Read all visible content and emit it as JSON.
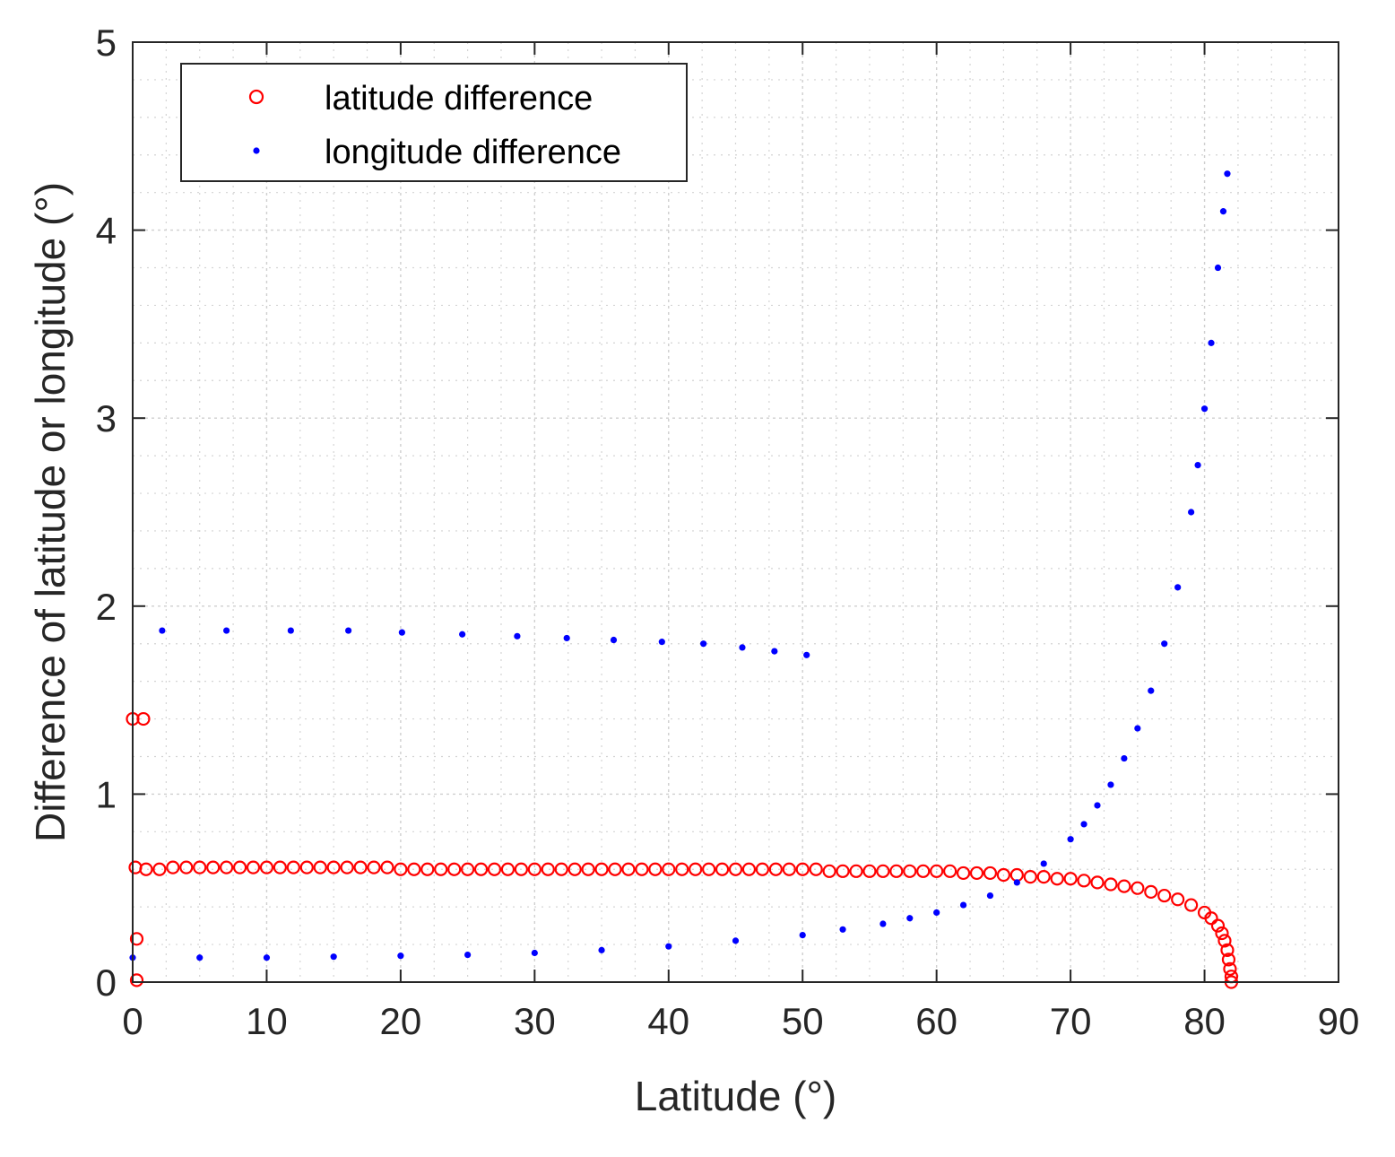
{
  "chart_data": {
    "type": "scatter",
    "title": "",
    "xlabel": "Latitude (°)",
    "ylabel": "Difference of latitude or longitude (°)",
    "xlim": [
      0,
      90
    ],
    "ylim": [
      0,
      5
    ],
    "xticks": [
      0,
      10,
      20,
      30,
      40,
      50,
      60,
      70,
      80,
      90
    ],
    "yticks": [
      0,
      1,
      2,
      3,
      4,
      5
    ],
    "xtick_labels": [
      "0",
      "10",
      "20",
      "30",
      "40",
      "50",
      "60",
      "70",
      "80",
      "90"
    ],
    "ytick_labels": [
      "0",
      "1",
      "2",
      "3",
      "4",
      "5"
    ],
    "minor_grid": true,
    "legend_position": "top-left",
    "series": [
      {
        "name": "latitude difference",
        "marker": "circle-open",
        "color": "#ff0000",
        "points": [
          [
            0.0,
            1.4
          ],
          [
            0.8,
            1.4
          ],
          [
            0.3,
            0.23
          ],
          [
            0.3,
            0.01
          ],
          [
            0.2,
            0.61
          ],
          [
            1,
            0.6
          ],
          [
            2,
            0.6
          ],
          [
            3,
            0.61
          ],
          [
            4,
            0.61
          ],
          [
            5,
            0.61
          ],
          [
            6,
            0.61
          ],
          [
            7,
            0.61
          ],
          [
            8,
            0.61
          ],
          [
            9,
            0.61
          ],
          [
            10,
            0.61
          ],
          [
            11,
            0.61
          ],
          [
            12,
            0.61
          ],
          [
            13,
            0.61
          ],
          [
            14,
            0.61
          ],
          [
            15,
            0.61
          ],
          [
            16,
            0.61
          ],
          [
            17,
            0.61
          ],
          [
            18,
            0.61
          ],
          [
            19,
            0.61
          ],
          [
            20,
            0.6
          ],
          [
            21,
            0.6
          ],
          [
            22,
            0.6
          ],
          [
            23,
            0.6
          ],
          [
            24,
            0.6
          ],
          [
            25,
            0.6
          ],
          [
            26,
            0.6
          ],
          [
            27,
            0.6
          ],
          [
            28,
            0.6
          ],
          [
            29,
            0.6
          ],
          [
            30,
            0.6
          ],
          [
            31,
            0.6
          ],
          [
            32,
            0.6
          ],
          [
            33,
            0.6
          ],
          [
            34,
            0.6
          ],
          [
            35,
            0.6
          ],
          [
            36,
            0.6
          ],
          [
            37,
            0.6
          ],
          [
            38,
            0.6
          ],
          [
            39,
            0.6
          ],
          [
            40,
            0.6
          ],
          [
            41,
            0.6
          ],
          [
            42,
            0.6
          ],
          [
            43,
            0.6
          ],
          [
            44,
            0.6
          ],
          [
            45,
            0.6
          ],
          [
            46,
            0.6
          ],
          [
            47,
            0.6
          ],
          [
            48,
            0.6
          ],
          [
            49,
            0.6
          ],
          [
            50,
            0.6
          ],
          [
            51,
            0.6
          ],
          [
            52,
            0.59
          ],
          [
            53,
            0.59
          ],
          [
            54,
            0.59
          ],
          [
            55,
            0.59
          ],
          [
            56,
            0.59
          ],
          [
            57,
            0.59
          ],
          [
            58,
            0.59
          ],
          [
            59,
            0.59
          ],
          [
            60,
            0.59
          ],
          [
            61,
            0.59
          ],
          [
            62,
            0.58
          ],
          [
            63,
            0.58
          ],
          [
            64,
            0.58
          ],
          [
            65,
            0.57
          ],
          [
            66,
            0.57
          ],
          [
            67,
            0.56
          ],
          [
            68,
            0.56
          ],
          [
            69,
            0.55
          ],
          [
            70,
            0.55
          ],
          [
            71,
            0.54
          ],
          [
            72,
            0.53
          ],
          [
            73,
            0.52
          ],
          [
            74,
            0.51
          ],
          [
            75,
            0.5
          ],
          [
            76,
            0.48
          ],
          [
            77,
            0.46
          ],
          [
            78,
            0.44
          ],
          [
            79,
            0.41
          ],
          [
            80,
            0.37
          ],
          [
            80.5,
            0.34
          ],
          [
            81,
            0.3
          ],
          [
            81.3,
            0.26
          ],
          [
            81.5,
            0.22
          ],
          [
            81.7,
            0.17
          ],
          [
            81.8,
            0.12
          ],
          [
            81.9,
            0.07
          ],
          [
            82.0,
            0.03
          ],
          [
            82.0,
            0.0
          ]
        ]
      },
      {
        "name": "longitude difference",
        "marker": "dot",
        "color": "#0000ff",
        "points": [
          [
            2.2,
            1.87
          ],
          [
            7.0,
            1.87
          ],
          [
            11.8,
            1.87
          ],
          [
            16.1,
            1.87
          ],
          [
            20.1,
            1.86
          ],
          [
            24.6,
            1.85
          ],
          [
            28.7,
            1.84
          ],
          [
            32.4,
            1.83
          ],
          [
            35.9,
            1.82
          ],
          [
            39.5,
            1.81
          ],
          [
            42.6,
            1.8
          ],
          [
            45.5,
            1.78
          ],
          [
            47.9,
            1.76
          ],
          [
            50.3,
            1.74
          ],
          [
            0,
            0.13
          ],
          [
            5,
            0.13
          ],
          [
            10,
            0.13
          ],
          [
            15,
            0.135
          ],
          [
            20,
            0.14
          ],
          [
            25,
            0.145
          ],
          [
            30,
            0.155
          ],
          [
            35,
            0.17
          ],
          [
            40,
            0.19
          ],
          [
            45,
            0.22
          ],
          [
            50,
            0.25
          ],
          [
            53,
            0.28
          ],
          [
            56,
            0.31
          ],
          [
            58,
            0.34
          ],
          [
            60,
            0.37
          ],
          [
            62,
            0.41
          ],
          [
            64,
            0.46
          ],
          [
            66,
            0.53
          ],
          [
            68,
            0.63
          ],
          [
            70,
            0.76
          ],
          [
            71,
            0.84
          ],
          [
            72,
            0.94
          ],
          [
            73,
            1.05
          ],
          [
            74,
            1.19
          ],
          [
            75,
            1.35
          ],
          [
            76,
            1.55
          ],
          [
            77,
            1.8
          ],
          [
            78,
            2.1
          ],
          [
            79,
            2.5
          ],
          [
            79.5,
            2.75
          ],
          [
            80,
            3.05
          ],
          [
            80.5,
            3.4
          ],
          [
            81,
            3.8
          ],
          [
            81.4,
            4.1
          ],
          [
            81.7,
            4.3
          ]
        ]
      }
    ]
  }
}
